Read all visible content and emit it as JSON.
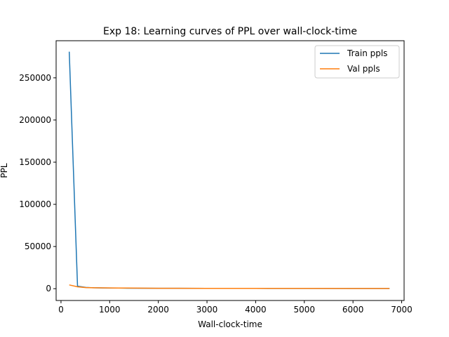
{
  "chart_data": {
    "type": "line",
    "title": "Exp 18: Learning curves of PPL over wall-clock-time",
    "xlabel": "Wall-clock-time",
    "ylabel": "PPL",
    "xlim": [
      -100,
      7050
    ],
    "ylim": [
      -14000,
      294000
    ],
    "xticks": [
      0,
      1000,
      2000,
      3000,
      4000,
      5000,
      6000,
      7000
    ],
    "yticks": [
      0,
      50000,
      100000,
      150000,
      200000,
      250000
    ],
    "grid": false,
    "legend": {
      "placement": "top-right"
    },
    "series": [
      {
        "name": "Train ppls",
        "color": "#1f77b4",
        "x": [
          170,
          340,
          510,
          680,
          850,
          1020,
          1190,
          1360,
          2000,
          3000,
          4000,
          5000,
          6000,
          6750
        ],
        "y": [
          281000,
          3000,
          1500,
          1100,
          900,
          800,
          700,
          600,
          450,
          350,
          300,
          260,
          230,
          210
        ]
      },
      {
        "name": "Val ppls",
        "color": "#ff7f0e",
        "x": [
          170,
          340,
          510,
          680,
          850,
          1020,
          1190,
          1360,
          2000,
          3000,
          4000,
          5000,
          6000,
          6750
        ],
        "y": [
          4500,
          2200,
          1300,
          1100,
          1000,
          900,
          850,
          700,
          500,
          400,
          330,
          290,
          260,
          240
        ]
      }
    ]
  }
}
